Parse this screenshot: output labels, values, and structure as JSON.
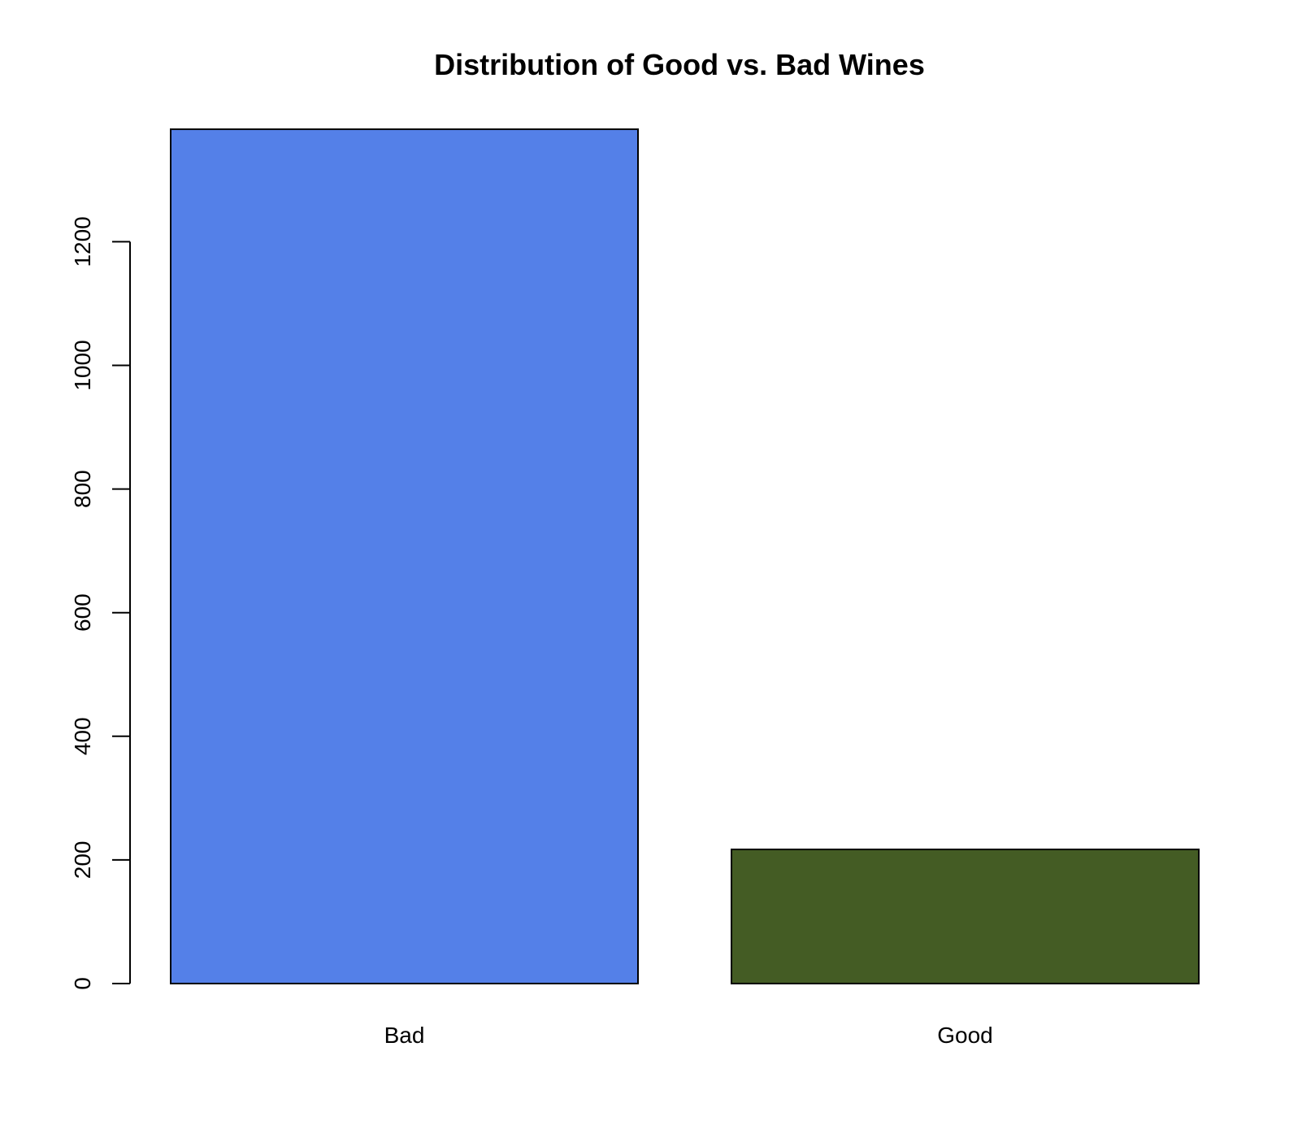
{
  "chart_data": {
    "type": "bar",
    "title": "Distribution of Good vs. Bad Wines",
    "xlabel": "",
    "ylabel": "",
    "categories": [
      "Bad",
      "Good"
    ],
    "values": [
      1382,
      217
    ],
    "colors": [
      "#5480E8",
      "#445C24"
    ],
    "ylim": [
      0,
      1400
    ],
    "yticks": [
      0,
      200,
      400,
      600,
      800,
      1000,
      1200
    ],
    "ytick_labels": [
      "0",
      "200",
      "400",
      "600",
      "800",
      "1000",
      "1200"
    ],
    "grid": false,
    "legend": "none"
  }
}
